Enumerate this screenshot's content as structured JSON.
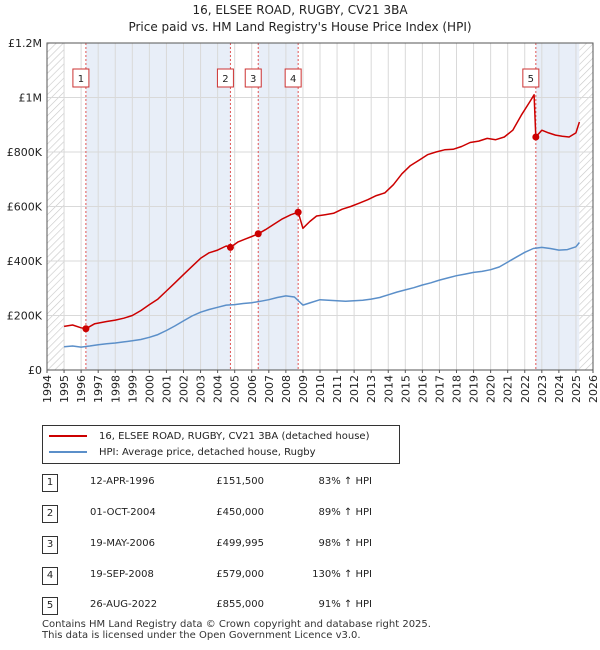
{
  "title_line1": "16, ELSEE ROAD, RUGBY, CV21 3BA",
  "title_line2": "Price paid vs. HM Land Registry's House Price Index (HPI)",
  "legend": {
    "property": "16, ELSEE ROAD, RUGBY, CV21 3BA (detached house)",
    "hpi": "HPI: Average price, detached house, Rugby"
  },
  "colors": {
    "property": "#cc0000",
    "hpi": "#5b8fc9",
    "shade": "#e8eef8",
    "marker_line": "#e05555"
  },
  "transactions": [
    {
      "n": "1",
      "date": "12-APR-1996",
      "price": "£151,500",
      "hpi": "83% ↑ HPI"
    },
    {
      "n": "2",
      "date": "01-OCT-2004",
      "price": "£450,000",
      "hpi": "89% ↑ HPI"
    },
    {
      "n": "3",
      "date": "19-MAY-2006",
      "price": "£499,995",
      "hpi": "98% ↑ HPI"
    },
    {
      "n": "4",
      "date": "19-SEP-2008",
      "price": "£579,000",
      "hpi": "130% ↑ HPI"
    },
    {
      "n": "5",
      "date": "26-AUG-2022",
      "price": "£855,000",
      "hpi": "91% ↑ HPI"
    }
  ],
  "footer_line1": "Contains HM Land Registry data © Crown copyright and database right 2025.",
  "footer_line2": "This data is licensed under the Open Government Licence v3.0.",
  "chart_data": {
    "type": "line",
    "xlim": [
      1994,
      2026
    ],
    "ylim": [
      0,
      1200000
    ],
    "y_ticks": [
      0,
      200000,
      400000,
      600000,
      800000,
      1000000,
      1200000
    ],
    "y_tick_labels": [
      "£0",
      "£200K",
      "£400K",
      "£600K",
      "£800K",
      "£1M",
      "£1.2M"
    ],
    "x_ticks": [
      1994,
      1995,
      1996,
      1997,
      1998,
      1999,
      2000,
      2001,
      2002,
      2003,
      2004,
      2005,
      2006,
      2007,
      2008,
      2009,
      2010,
      2011,
      2012,
      2013,
      2014,
      2015,
      2016,
      2017,
      2018,
      2019,
      2020,
      2021,
      2022,
      2023,
      2024,
      2025,
      2026
    ],
    "grid": true,
    "shaded_ranges": [
      [
        1994,
        1995
      ],
      [
        1996.28,
        2004.75
      ],
      [
        2006.38,
        2008.72
      ],
      [
        2022.65,
        2025.2
      ]
    ],
    "hatched_ranges": [
      [
        1994,
        1995
      ],
      [
        2025.2,
        2026
      ]
    ],
    "sale_markers": [
      {
        "label": "1",
        "x": 1996.28,
        "y": 151500
      },
      {
        "label": "2",
        "x": 2004.75,
        "y": 450000
      },
      {
        "label": "3",
        "x": 2006.38,
        "y": 499995
      },
      {
        "label": "4",
        "x": 2008.72,
        "y": 579000
      },
      {
        "label": "5",
        "x": 2022.65,
        "y": 855000
      }
    ],
    "series": [
      {
        "name": "16, ELSEE ROAD, RUGBY, CV21 3BA (detached house)",
        "x": [
          1995.0,
          1995.5,
          1996.0,
          1996.28,
          1996.8,
          1997.5,
          1998.0,
          1998.5,
          1999.0,
          1999.5,
          2000.0,
          2000.5,
          2001.0,
          2001.5,
          2002.0,
          2002.5,
          2003.0,
          2003.5,
          2004.0,
          2004.5,
          2004.75,
          2005.2,
          2005.6,
          2006.0,
          2006.38,
          2006.8,
          2007.3,
          2007.8,
          2008.3,
          2008.72,
          2009.0,
          2009.4,
          2009.8,
          2010.3,
          2010.8,
          2011.3,
          2011.8,
          2012.3,
          2012.8,
          2013.3,
          2013.8,
          2014.3,
          2014.8,
          2015.3,
          2015.8,
          2016.3,
          2016.8,
          2017.3,
          2017.8,
          2018.3,
          2018.8,
          2019.3,
          2019.8,
          2020.3,
          2020.8,
          2021.3,
          2021.8,
          2022.3,
          2022.55,
          2022.65,
          2023.0,
          2023.4,
          2023.8,
          2024.2,
          2024.6,
          2025.0,
          2025.2
        ],
        "y": [
          160000,
          165000,
          155000,
          151500,
          170000,
          178000,
          183000,
          190000,
          200000,
          218000,
          240000,
          260000,
          290000,
          320000,
          350000,
          380000,
          410000,
          430000,
          440000,
          455000,
          450000,
          470000,
          480000,
          490000,
          499995,
          515000,
          535000,
          555000,
          570000,
          579000,
          520000,
          545000,
          565000,
          570000,
          575000,
          590000,
          600000,
          612000,
          625000,
          640000,
          650000,
          680000,
          720000,
          750000,
          770000,
          790000,
          800000,
          808000,
          810000,
          820000,
          835000,
          840000,
          850000,
          845000,
          855000,
          880000,
          935000,
          985000,
          1010000,
          855000,
          880000,
          870000,
          862000,
          858000,
          855000,
          870000,
          910000
        ]
      },
      {
        "name": "HPI: Average price, detached house, Rugby",
        "x": [
          1995.0,
          1995.5,
          1996.0,
          1996.5,
          1997.0,
          1997.5,
          1998.0,
          1998.5,
          1999.0,
          1999.5,
          2000.0,
          2000.5,
          2001.0,
          2001.5,
          2002.0,
          2002.5,
          2003.0,
          2003.5,
          2004.0,
          2004.5,
          2005.0,
          2005.5,
          2006.0,
          2006.5,
          2007.0,
          2007.5,
          2008.0,
          2008.5,
          2009.0,
          2009.5,
          2010.0,
          2010.5,
          2011.0,
          2011.5,
          2012.0,
          2012.5,
          2013.0,
          2013.5,
          2014.0,
          2014.5,
          2015.0,
          2015.5,
          2016.0,
          2016.5,
          2017.0,
          2017.5,
          2018.0,
          2018.5,
          2019.0,
          2019.5,
          2020.0,
          2020.5,
          2021.0,
          2021.5,
          2022.0,
          2022.5,
          2023.0,
          2023.5,
          2024.0,
          2024.5,
          2025.0,
          2025.2
        ],
        "y": [
          85000,
          88000,
          84000,
          88000,
          93000,
          96000,
          99000,
          103000,
          107000,
          112000,
          120000,
          130000,
          145000,
          162000,
          180000,
          198000,
          212000,
          222000,
          230000,
          238000,
          240000,
          244000,
          247000,
          252000,
          258000,
          266000,
          272000,
          268000,
          238000,
          248000,
          258000,
          256000,
          254000,
          252000,
          254000,
          256000,
          260000,
          266000,
          276000,
          286000,
          294000,
          302000,
          312000,
          320000,
          330000,
          338000,
          346000,
          352000,
          358000,
          362000,
          368000,
          378000,
          396000,
          414000,
          432000,
          446000,
          450000,
          446000,
          440000,
          442000,
          452000,
          468000
        ]
      }
    ]
  }
}
